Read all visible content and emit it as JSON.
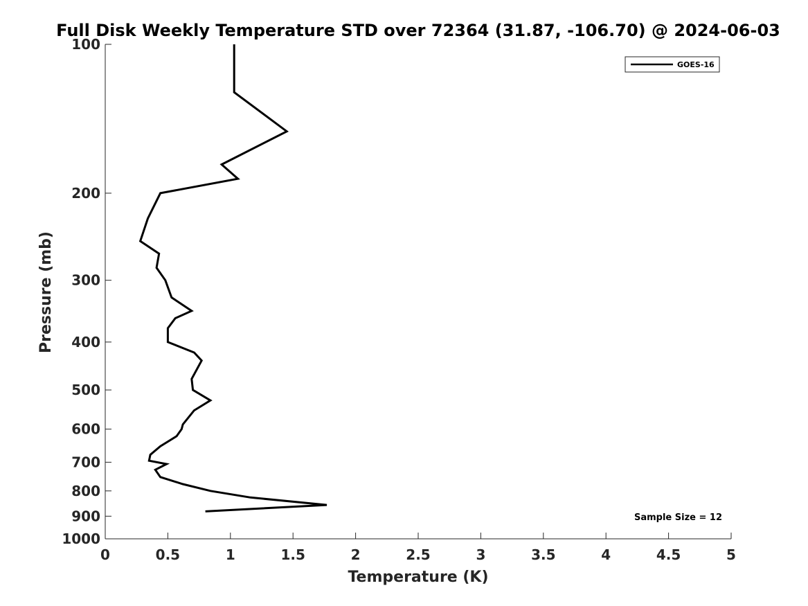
{
  "chart_data": {
    "type": "line",
    "title": "Full Disk Weekly Temperature STD over 72364 (31.87, -106.70) @ 2024-06-03",
    "xlabel": "Temperature (K)",
    "ylabel": "Pressure (mb)",
    "xlim": [
      0,
      5
    ],
    "ylim": [
      100,
      1000
    ],
    "yscale": "log",
    "y_reversed": true,
    "grid": false,
    "legend_position": "top-right",
    "x_ticks": [
      "0",
      "0.5",
      "1",
      "1.5",
      "2",
      "2.5",
      "3",
      "3.5",
      "4",
      "4.5",
      "5"
    ],
    "x_tick_values": [
      0,
      0.5,
      1,
      1.5,
      2,
      2.5,
      3,
      3.5,
      4,
      4.5,
      5
    ],
    "y_ticks": [
      "100",
      "200",
      "300",
      "400",
      "500",
      "600",
      "700",
      "800",
      "900",
      "1000"
    ],
    "y_tick_values": [
      100,
      200,
      300,
      400,
      500,
      600,
      700,
      800,
      900,
      1000
    ],
    "series": [
      {
        "name": "GOES-16",
        "color": "#000000",
        "points": [
          {
            "x": 1.03,
            "p": 100
          },
          {
            "x": 1.03,
            "p": 125
          },
          {
            "x": 1.45,
            "p": 150
          },
          {
            "x": 0.93,
            "p": 175
          },
          {
            "x": 1.06,
            "p": 187
          },
          {
            "x": 0.44,
            "p": 200
          },
          {
            "x": 0.34,
            "p": 225
          },
          {
            "x": 0.28,
            "p": 250
          },
          {
            "x": 0.43,
            "p": 265
          },
          {
            "x": 0.41,
            "p": 283
          },
          {
            "x": 0.48,
            "p": 300
          },
          {
            "x": 0.53,
            "p": 325
          },
          {
            "x": 0.69,
            "p": 346
          },
          {
            "x": 0.56,
            "p": 358
          },
          {
            "x": 0.5,
            "p": 375
          },
          {
            "x": 0.5,
            "p": 400
          },
          {
            "x": 0.71,
            "p": 420
          },
          {
            "x": 0.77,
            "p": 436
          },
          {
            "x": 0.69,
            "p": 475
          },
          {
            "x": 0.7,
            "p": 500
          },
          {
            "x": 0.84,
            "p": 525
          },
          {
            "x": 0.71,
            "p": 550
          },
          {
            "x": 0.62,
            "p": 587
          },
          {
            "x": 0.61,
            "p": 600
          },
          {
            "x": 0.57,
            "p": 620
          },
          {
            "x": 0.44,
            "p": 650
          },
          {
            "x": 0.36,
            "p": 676
          },
          {
            "x": 0.35,
            "p": 695
          },
          {
            "x": 0.49,
            "p": 706
          },
          {
            "x": 0.4,
            "p": 725
          },
          {
            "x": 0.44,
            "p": 750
          },
          {
            "x": 0.62,
            "p": 775
          },
          {
            "x": 0.84,
            "p": 800
          },
          {
            "x": 1.16,
            "p": 825
          },
          {
            "x": 1.77,
            "p": 854
          },
          {
            "x": 0.8,
            "p": 880
          }
        ]
      }
    ],
    "annotation": "Sample Size = 12"
  }
}
